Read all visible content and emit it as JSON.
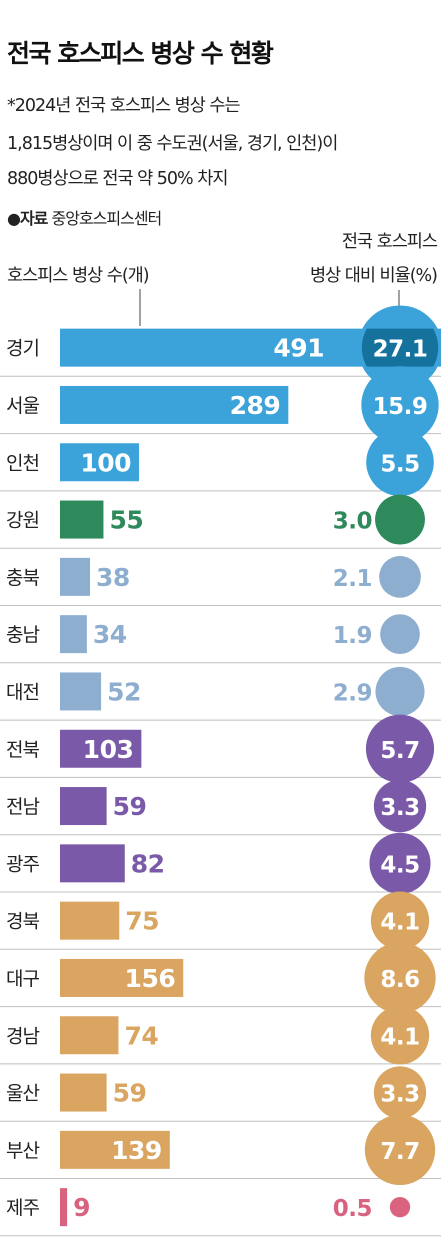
{
  "header": {
    "title": "전국 호스피스 병상 수 현황",
    "note_lines": [
      "*2024년 전국 호스피스 병상 수는",
      "1,815병상이며 이 중 수도권(서울, 경기, 인천)이",
      "880병상으로 전국 약 50% 차지"
    ],
    "source_bullet": "●자료",
    "source_text": "중앙호스피스센터"
  },
  "colors": {
    "capital": "#3ba3d9",
    "gangwon": "#2e8a5b",
    "chungcheong": "#8eaed0",
    "jeolla": "#7a5aa8",
    "gyeongsang": "#d9a560",
    "jeju": "#d9637f",
    "overlap_circle": "#14729c"
  },
  "chart_data": {
    "type": "bar",
    "left_label": "호스피스 병상 수(개)",
    "right_label_lines": [
      "전국 호스피스",
      "병상 대비 비율(%)"
    ],
    "categories": [
      "경기",
      "서울",
      "인천",
      "강원",
      "충북",
      "충남",
      "대전",
      "전북",
      "전남",
      "광주",
      "경북",
      "대구",
      "경남",
      "울산",
      "부산",
      "제주"
    ],
    "series": [
      {
        "values": [
          491,
          289,
          100,
          55,
          38,
          34,
          52,
          103,
          59,
          82,
          75,
          156,
          74,
          59,
          139,
          9
        ],
        "percent": [
          27.1,
          15.9,
          5.5,
          3.0,
          2.1,
          1.9,
          2.9,
          5.7,
          3.3,
          4.5,
          4.1,
          8.6,
          4.1,
          3.3,
          7.7,
          0.5
        ],
        "value_labels": [
          "491",
          "289",
          "100",
          "55",
          "38",
          "34",
          "52",
          "103",
          "59",
          "82",
          "75",
          "156",
          "74",
          "59",
          "139",
          "9"
        ],
        "percent_labels": [
          "27.1",
          "15.9",
          "5.5",
          "3.0",
          "2.1",
          "1.9",
          "2.9",
          "5.7",
          "3.3",
          "4.5",
          "4.1",
          "8.6",
          "4.1",
          "3.3",
          "7.7",
          "0.5"
        ],
        "groups": [
          "capital",
          "capital",
          "capital",
          "gangwon",
          "chungcheong",
          "chungcheong",
          "chungcheong",
          "jeolla",
          "jeolla",
          "jeolla",
          "gyeongsang",
          "gyeongsang",
          "gyeongsang",
          "gyeongsang",
          "gyeongsang",
          "jeju"
        ]
      }
    ]
  }
}
